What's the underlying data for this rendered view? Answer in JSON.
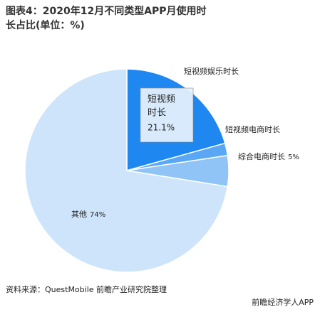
{
  "chart_data": {
    "type": "pie",
    "title": "图表4：2020年12月不同类型APP月使用时长占比(单位：%)",
    "categories": [
      "短视频娱乐时长",
      "短视频电商时长",
      "综合电商时长",
      "其他"
    ],
    "values": [
      21.1,
      2,
      5,
      74
    ],
    "value_labels": [
      "21.1%",
      null,
      "5%",
      "74%"
    ],
    "colors": [
      "#1e88f0",
      "#5aa8f5",
      "#90c4f7",
      "#cde4fb"
    ],
    "annotation": [
      "短视频",
      "时长"
    ],
    "source": "资料来源：QuestMobile 前瞻产业研究院整理",
    "footer": "前瞻经济学人APP"
  }
}
